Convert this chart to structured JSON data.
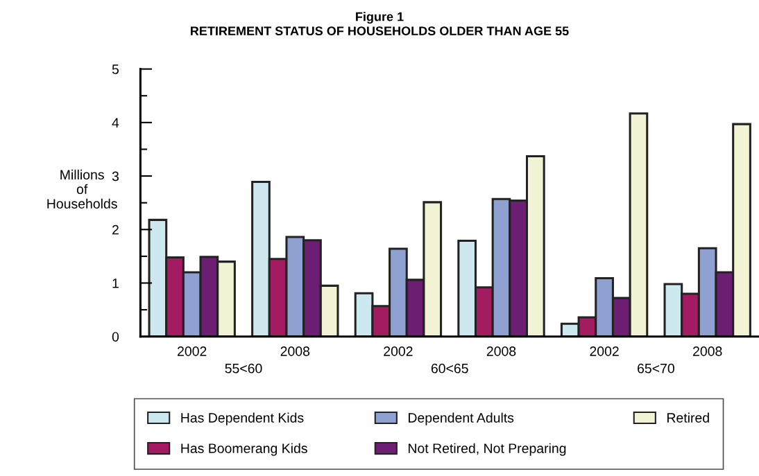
{
  "chart_data": {
    "type": "bar",
    "title": "Figure 1",
    "subtitle": "RETIREMENT STATUS OF HOUSEHOLDS OLDER THAN AGE 55",
    "ylabel": "Millions\nof\nHouseholds",
    "categories": [
      "2002",
      "2008",
      "2002",
      "2008",
      "2002",
      "2008"
    ],
    "annotations": [
      "55<60",
      "60<65",
      "65<70"
    ],
    "series": [
      {
        "name": "Has Dependent Kids",
        "color": "#cde9ef",
        "values": [
          2.18,
          2.89,
          0.81,
          1.79,
          0.24,
          0.98
        ]
      },
      {
        "name": "Has Boomerang Kids",
        "color": "#a31c61",
        "values": [
          1.48,
          1.45,
          0.57,
          0.92,
          0.36,
          0.8
        ]
      },
      {
        "name": "Dependent Adults",
        "color": "#8fa1d0",
        "values": [
          1.2,
          1.86,
          1.64,
          2.57,
          1.09,
          1.65
        ]
      },
      {
        "name": "Not Retired, Not Preparing",
        "color": "#6c1f72",
        "values": [
          1.49,
          1.8,
          1.06,
          2.54,
          0.72,
          1.2
        ]
      },
      {
        "name": "Retired",
        "color": "#f2f2d4",
        "values": [
          1.4,
          0.95,
          2.51,
          3.37,
          4.17,
          3.97
        ]
      }
    ],
    "ylim": [
      0,
      5
    ],
    "yticks": [
      0,
      {
        "value": 0.5,
        "label": null
      },
      1,
      {
        "value": 1.5,
        "label": null
      },
      2,
      {
        "value": 2.5,
        "label": null
      },
      3,
      {
        "value": 3.5,
        "label": null
      },
      4,
      {
        "value": 4.5,
        "label": null
      },
      5
    ],
    "grid": false,
    "legend": "bottom"
  }
}
